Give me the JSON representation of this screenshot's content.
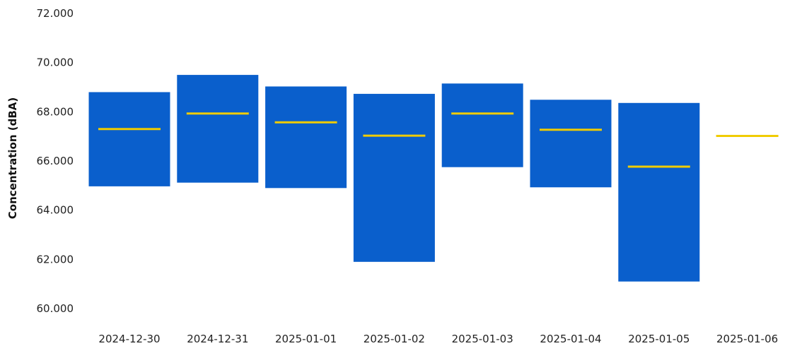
{
  "chart_data": {
    "type": "range-bar",
    "title": "",
    "xlabel": "",
    "ylabel": "Concentration (dBA)",
    "ylim": [
      60,
      72
    ],
    "y_ticks": [
      {
        "value": 60,
        "label": "60.000"
      },
      {
        "value": 62,
        "label": "62.000"
      },
      {
        "value": 64,
        "label": "64.000"
      },
      {
        "value": 66,
        "label": "66.000"
      },
      {
        "value": 68,
        "label": "68.000"
      },
      {
        "value": 70,
        "label": "70.000"
      },
      {
        "value": 72,
        "label": "72.000"
      }
    ],
    "grid": false,
    "legend": "none",
    "categories": [
      "2024-12-30",
      "2024-12-31",
      "2025-01-01",
      "2025-01-02",
      "2025-01-03",
      "2025-01-04",
      "2025-01-05",
      "2025-01-06"
    ],
    "series": [
      {
        "role": "range",
        "color": "#0a5fcc",
        "low": [
          64.97,
          65.12,
          64.9,
          61.9,
          65.75,
          64.93,
          61.1,
          null
        ],
        "high": [
          68.8,
          69.5,
          69.03,
          68.73,
          69.15,
          68.49,
          68.36,
          null
        ]
      },
      {
        "role": "average",
        "color": "#f0cc00",
        "values": [
          67.3,
          67.93,
          67.57,
          67.03,
          67.93,
          67.27,
          65.77,
          67.02
        ]
      }
    ]
  }
}
